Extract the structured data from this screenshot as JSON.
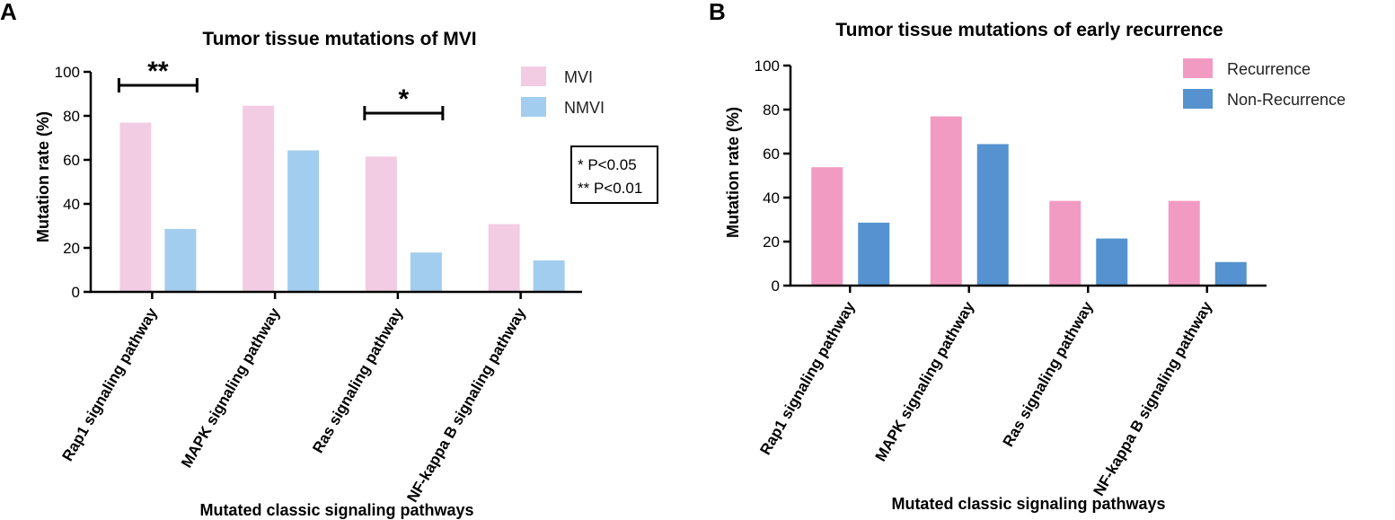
{
  "chart_data": [
    {
      "panel": "A",
      "type": "bar",
      "title": "Tumor tissue mutations of  MVI",
      "xlabel": "Mutated classic signaling pathways",
      "ylabel": "Mutation rate (%)",
      "ylim": [
        0,
        100
      ],
      "yticks": [
        0,
        20,
        40,
        60,
        80,
        100
      ],
      "categories": [
        "Rap1 signaling pathway",
        "MAPK signaling pathway",
        "Ras signaling pathway",
        "NF-kappa B signaling pathway"
      ],
      "series": [
        {
          "name": "MVI",
          "color": "#f2cce3",
          "values": [
            76.9,
            84.6,
            61.5,
            30.8
          ]
        },
        {
          "name": "NMVI",
          "color": "#a3cdee",
          "values": [
            28.6,
            64.3,
            17.9,
            14.3
          ]
        }
      ],
      "significance": [
        {
          "category_index": 0,
          "label": "**"
        },
        {
          "category_index": 2,
          "label": "*"
        }
      ],
      "notes": [
        "* P<0.05",
        "** P<0.01"
      ]
    },
    {
      "panel": "B",
      "type": "bar",
      "title": "Tumor tissue mutations of  early recurrence",
      "xlabel": "Mutated classic signaling pathways",
      "ylabel": "Mutation rate (%)",
      "ylim": [
        0,
        100
      ],
      "yticks": [
        0,
        20,
        40,
        60,
        80,
        100
      ],
      "categories": [
        "Rap1 signaling pathway",
        "MAPK signaling pathway",
        "Ras signaling pathway",
        "NF-kappa B signaling pathway"
      ],
      "series": [
        {
          "name": "Recurrence",
          "color": "#f29bc2",
          "values": [
            53.8,
            76.9,
            38.5,
            38.5
          ]
        },
        {
          "name": "Non-Recurrence",
          "color": "#5592cf",
          "values": [
            28.6,
            64.3,
            21.4,
            10.7
          ]
        }
      ]
    }
  ]
}
